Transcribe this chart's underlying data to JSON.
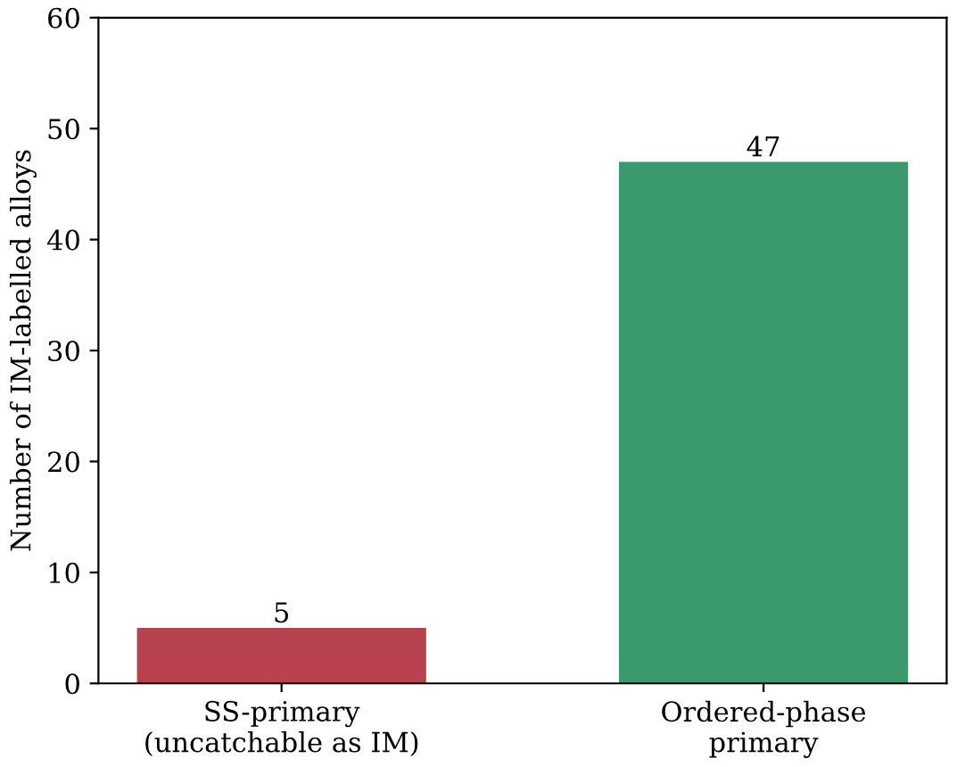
{
  "chart_data": {
    "type": "bar",
    "ylabel": "Number of IM-labelled alloys",
    "categories": [
      "SS-primary\n(uncatchable as IM)",
      "Ordered-phase\nprimary"
    ],
    "values": [
      5,
      47
    ],
    "colors": [
      "#b8424f",
      "#3a9a6e"
    ],
    "ylim": [
      0,
      60
    ],
    "yticks": [
      0,
      10,
      20,
      30,
      40,
      50,
      60
    ],
    "data_labels": true,
    "grid": false
  }
}
